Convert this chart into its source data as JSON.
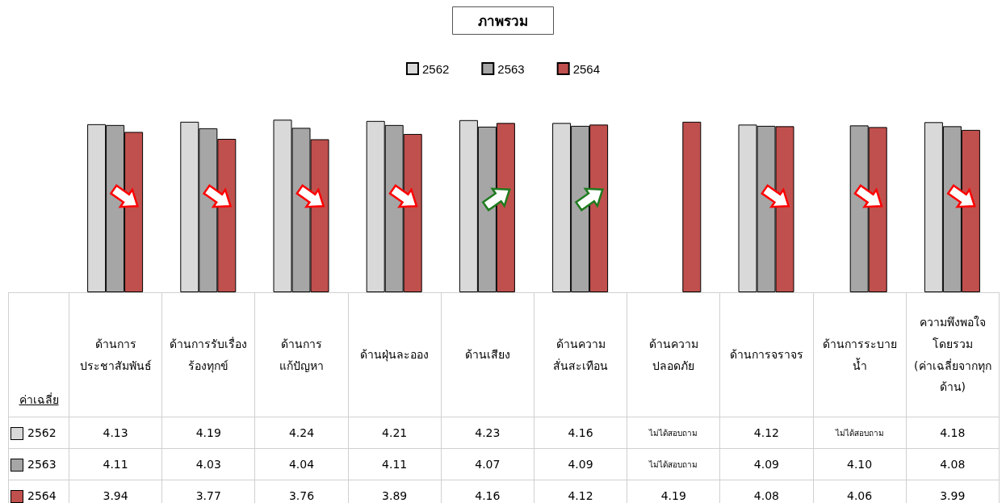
{
  "chart_data": {
    "type": "bar",
    "title": "ภาพรวม",
    "categories": [
      "ด้านการ ประชาสัมพันธ์",
      "ด้านการรับเรื่อง ร้องทุกข์",
      "ด้านการ แก้ปัญหา",
      "ด้านฝุ่นละออง",
      "ด้านเสียง",
      "ด้านความ สั่นสะเทือน",
      "ด้านความ ปลอดภัย",
      "ด้านการจราจร",
      "ด้านการระบาย น้ำ",
      "ความพึงพอใจ โดยรวม (ค่าเฉลี่ยจากทุก ด้าน)"
    ],
    "series": [
      {
        "name": "2562",
        "color": "#d9d9d9",
        "values": [
          4.13,
          4.19,
          4.24,
          4.21,
          4.23,
          4.16,
          null,
          4.12,
          null,
          4.18
        ],
        "value_labels": [
          "4.13",
          "4.19",
          "4.24",
          "4.21",
          "4.23",
          "4.16",
          "ไม่ได้สอบถาม",
          "4.12",
          "ไม่ได้สอบถาม",
          "4.18"
        ]
      },
      {
        "name": "2563",
        "color": "#a6a6a6",
        "values": [
          4.11,
          4.03,
          4.04,
          4.11,
          4.07,
          4.09,
          null,
          4.09,
          4.1,
          4.08
        ],
        "value_labels": [
          "4.11",
          "4.03",
          "4.04",
          "4.11",
          "4.07",
          "4.09",
          "ไม่ได้สอบถาม",
          "4.09",
          "4.10",
          "4.08"
        ]
      },
      {
        "name": "2564",
        "color": "#c0504d",
        "values": [
          3.94,
          3.77,
          3.76,
          3.89,
          4.16,
          4.12,
          4.19,
          4.08,
          4.06,
          3.99
        ],
        "value_labels": [
          "3.94",
          "3.77",
          "3.76",
          "3.89",
          "4.16",
          "4.12",
          "4.19",
          "4.08",
          "4.06",
          "3.99"
        ]
      }
    ],
    "legend": "top",
    "grid": false,
    "annotations": [
      "ค่าเฉลี่ย"
    ]
  }
}
